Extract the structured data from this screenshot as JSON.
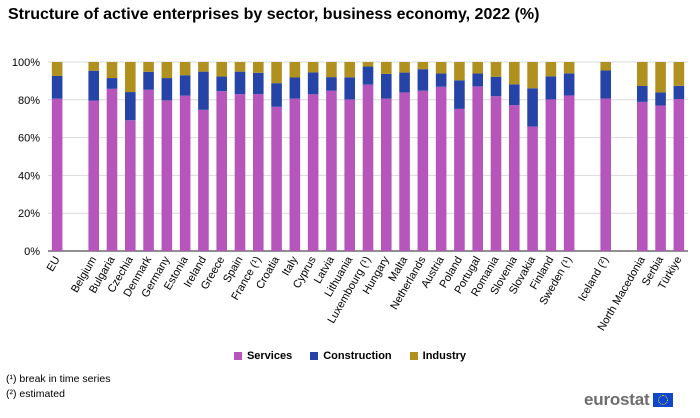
{
  "chart_data": {
    "type": "bar",
    "stacked": true,
    "title": "Structure of active enterprises by sector, business economy, 2022 (%)",
    "xlabel": "",
    "ylabel": "",
    "ylim": [
      0,
      100
    ],
    "y_ticks": [
      "0%",
      "20%",
      "40%",
      "60%",
      "80%",
      "100%"
    ],
    "grid": true,
    "legend_position": "bottom-center",
    "categories": [
      "EU",
      "",
      "Belgium",
      "Bulgaria",
      "Czechia",
      "Denmark",
      "Germany",
      "Estonia",
      "Ireland",
      "Greece",
      "Spain",
      "France (¹)",
      "Croatia",
      "Italy",
      "Cyprus",
      "Latvia",
      "Lithuania",
      "Luxembourg (¹)",
      "Hungary",
      "Malta",
      "Netherlands",
      "Austria",
      "Poland",
      "Portugal",
      "Romania",
      "Slovenia",
      "Slovakia",
      "Finland",
      "Sweden (¹)",
      "",
      "Iceland (²)",
      "",
      "North Macedonia",
      "Serbia",
      "Türkiye"
    ],
    "series": [
      {
        "name": "Services",
        "color": "#b656bd",
        "values": [
          80.6,
          null,
          79.6,
          85.8,
          69.2,
          85.3,
          79.7,
          82.2,
          74.7,
          84.6,
          83.0,
          83.0,
          76.3,
          80.6,
          82.9,
          84.8,
          80.2,
          88.0,
          80.6,
          83.9,
          84.8,
          86.9,
          75.2,
          87.1,
          81.9,
          77.2,
          65.9,
          80.2,
          82.3,
          null,
          80.7,
          null,
          78.9,
          76.9,
          80.4
        ]
      },
      {
        "name": "Construction",
        "color": "#2644a7",
        "values": [
          12.0,
          null,
          15.8,
          5.7,
          14.9,
          9.5,
          11.8,
          10.8,
          20.2,
          7.7,
          11.9,
          11.3,
          12.5,
          11.2,
          11.6,
          7.2,
          11.7,
          9.6,
          13.1,
          10.5,
          11.4,
          7.0,
          15.1,
          6.8,
          10.3,
          11.0,
          20.2,
          12.2,
          11.7,
          null,
          14.8,
          null,
          8.4,
          7.0,
          7.0
        ]
      },
      {
        "name": "Industry",
        "color": "#b09120",
        "values": [
          7.4,
          null,
          4.6,
          8.5,
          15.9,
          5.2,
          8.5,
          7.0,
          5.1,
          7.7,
          5.1,
          5.7,
          11.2,
          8.2,
          5.5,
          8.0,
          8.1,
          2.4,
          6.3,
          5.6,
          3.8,
          6.1,
          9.7,
          6.1,
          7.8,
          11.8,
          13.9,
          7.6,
          6.0,
          null,
          4.5,
          null,
          12.7,
          16.1,
          12.6
        ]
      }
    ]
  },
  "notes": [
    "(¹) break in time series",
    "(²) estimated"
  ],
  "logo": {
    "text": "eurostat"
  }
}
